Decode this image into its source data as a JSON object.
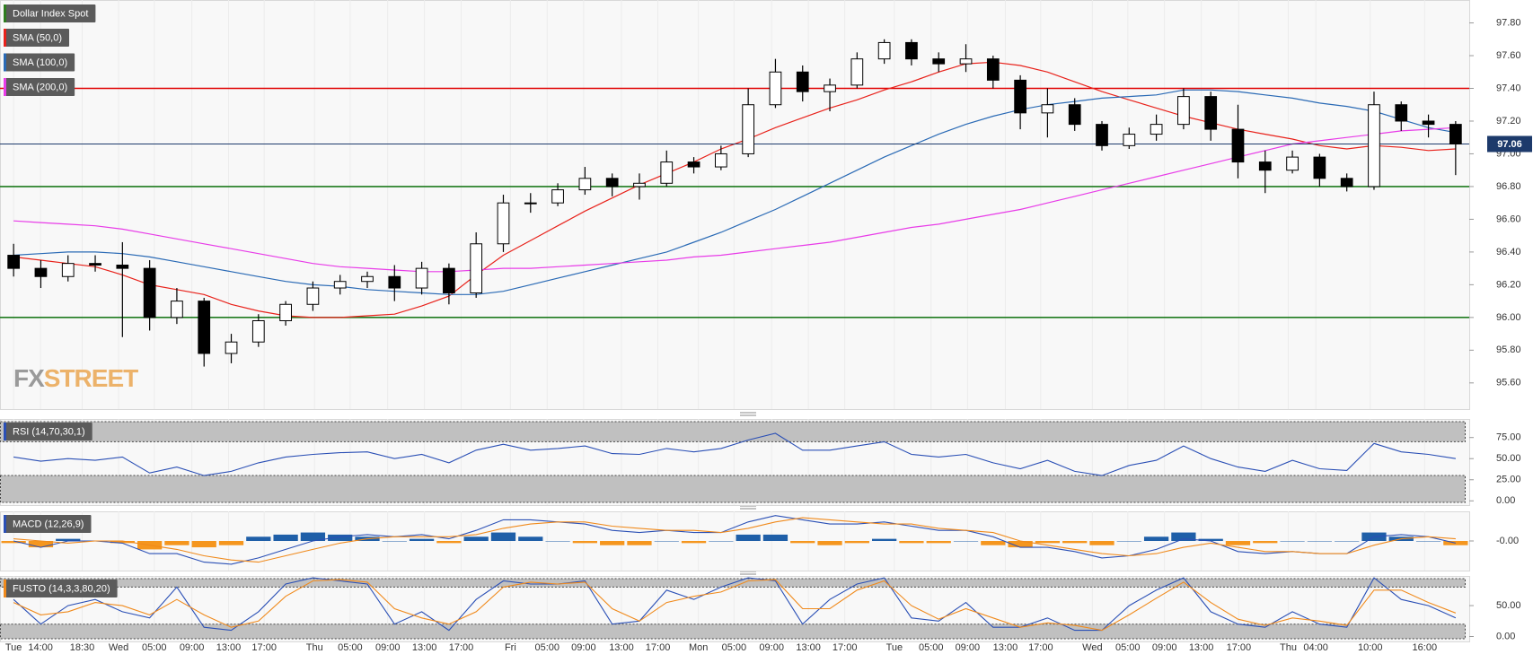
{
  "chart_data": [
    {
      "type": "candlestick",
      "name": "Dollar Index Spot",
      "color": "#2e7d1f",
      "up_color": "#ffffff",
      "down_color": "#000000",
      "open": [
        96.38,
        96.3,
        96.25,
        96.33,
        96.32,
        96.3,
        96.0,
        96.1,
        95.78,
        95.85,
        95.98,
        96.08,
        96.18,
        96.22,
        96.25,
        96.18,
        96.3,
        96.15,
        96.45,
        96.7,
        96.7,
        96.78,
        96.85,
        96.8,
        96.82,
        96.95,
        96.92,
        97.0,
        97.3,
        97.5,
        97.38,
        97.42,
        97.58,
        97.68,
        97.58,
        97.55,
        97.58,
        97.45,
        97.25,
        97.3,
        97.18,
        97.05,
        97.12,
        97.18,
        97.35,
        97.15,
        96.95,
        96.9,
        96.98,
        96.85,
        96.8,
        97.3,
        97.2,
        97.18
      ],
      "high": [
        96.45,
        96.35,
        96.38,
        96.38,
        96.46,
        96.35,
        96.18,
        96.12,
        95.9,
        96.02,
        96.1,
        96.22,
        96.26,
        96.28,
        96.32,
        96.34,
        96.33,
        96.52,
        96.75,
        96.76,
        96.82,
        96.92,
        96.88,
        96.88,
        97.02,
        96.98,
        97.05,
        97.4,
        97.58,
        97.54,
        97.46,
        97.62,
        97.7,
        97.7,
        97.62,
        97.67,
        97.6,
        97.48,
        97.4,
        97.34,
        97.2,
        97.16,
        97.24,
        97.4,
        97.38,
        97.3,
        97.02,
        97.02,
        97.0,
        96.88,
        97.38,
        97.32,
        97.24,
        97.2
      ],
      "low": [
        96.25,
        96.18,
        96.22,
        96.28,
        95.88,
        95.92,
        95.96,
        95.7,
        95.72,
        95.82,
        95.95,
        96.04,
        96.14,
        96.18,
        96.1,
        96.14,
        96.08,
        96.12,
        96.4,
        96.64,
        96.68,
        96.75,
        96.74,
        96.72,
        96.8,
        96.88,
        96.9,
        96.98,
        97.28,
        97.32,
        97.26,
        97.4,
        97.55,
        97.54,
        97.5,
        97.5,
        97.4,
        97.15,
        97.1,
        97.14,
        97.02,
        97.03,
        97.08,
        97.15,
        97.08,
        96.85,
        96.76,
        96.88,
        96.8,
        96.77,
        96.78,
        97.14,
        97.1,
        96.87
      ],
      "close": [
        96.3,
        96.25,
        96.33,
        96.32,
        96.3,
        96.0,
        96.1,
        95.78,
        95.85,
        95.98,
        96.08,
        96.18,
        96.22,
        96.25,
        96.18,
        96.3,
        96.15,
        96.45,
        96.7,
        96.7,
        96.78,
        96.85,
        96.8,
        96.82,
        96.95,
        96.92,
        97.0,
        97.3,
        97.5,
        97.38,
        97.42,
        97.58,
        97.68,
        97.58,
        97.55,
        97.58,
        97.45,
        97.25,
        97.3,
        97.18,
        97.05,
        97.12,
        97.18,
        97.35,
        97.15,
        96.95,
        96.9,
        96.98,
        96.85,
        96.8,
        97.3,
        97.2,
        97.18,
        97.06
      ],
      "series": [
        {
          "name": "SMA (50,0)",
          "color": "#e8221b",
          "values": [
            96.37,
            96.35,
            96.33,
            96.31,
            96.26,
            96.2,
            96.17,
            96.14,
            96.08,
            96.04,
            96.01,
            96.0,
            96.0,
            96.01,
            96.02,
            96.07,
            96.13,
            96.26,
            96.38,
            96.47,
            96.56,
            96.65,
            96.73,
            96.81,
            96.88,
            96.95,
            97.03,
            97.09,
            97.16,
            97.22,
            97.28,
            97.33,
            97.39,
            97.44,
            97.5,
            97.55,
            97.56,
            97.54,
            97.5,
            97.44,
            97.38,
            97.33,
            97.28,
            97.23,
            97.19,
            97.15,
            97.12,
            97.09,
            97.05,
            97.03,
            97.05,
            97.04,
            97.02,
            97.03
          ]
        },
        {
          "name": "SMA (100,0)",
          "color": "#2a6ab5",
          "values": [
            96.38,
            96.39,
            96.4,
            96.4,
            96.39,
            96.37,
            96.34,
            96.31,
            96.28,
            96.25,
            96.22,
            96.2,
            96.19,
            96.17,
            96.16,
            96.15,
            96.14,
            96.14,
            96.16,
            96.2,
            96.24,
            96.28,
            96.32,
            96.36,
            96.4,
            96.46,
            96.52,
            96.59,
            96.66,
            96.74,
            96.82,
            96.9,
            96.98,
            97.05,
            97.12,
            97.18,
            97.23,
            97.27,
            97.3,
            97.32,
            97.34,
            97.35,
            97.36,
            97.39,
            97.39,
            97.38,
            97.36,
            97.34,
            97.31,
            97.29,
            97.26,
            97.21,
            97.16,
            97.13
          ]
        },
        {
          "name": "SMA (200,0)",
          "color": "#e83ce8",
          "values": [
            96.59,
            96.58,
            96.57,
            96.56,
            96.54,
            96.51,
            96.48,
            96.45,
            96.42,
            96.39,
            96.36,
            96.33,
            96.31,
            96.3,
            96.29,
            96.28,
            96.28,
            96.29,
            96.3,
            96.3,
            96.31,
            96.32,
            96.33,
            96.34,
            96.35,
            96.37,
            96.38,
            96.4,
            96.42,
            96.44,
            96.46,
            96.49,
            96.52,
            96.55,
            96.57,
            96.6,
            96.63,
            96.66,
            96.7,
            96.74,
            96.78,
            96.82,
            96.86,
            96.9,
            96.94,
            96.98,
            97.02,
            97.06,
            97.08,
            97.1,
            97.12,
            97.14,
            97.15,
            97.16
          ]
        }
      ],
      "hlines": [
        {
          "value": 97.4,
          "color": "#e00000"
        },
        {
          "value": 96.8,
          "color": "#1e7b1e"
        },
        {
          "value": 96.0,
          "color": "#1e7b1e"
        }
      ],
      "last_price": 97.06,
      "last_price_color": "#1d3a6b",
      "watermark": [
        "FX",
        "STREET"
      ],
      "xlim": [
        -0.5,
        53.5
      ],
      "xticks": [
        {
          "value": 0,
          "label": "Tue"
        },
        {
          "value": 0.99,
          "label": "14:00"
        },
        {
          "value": 2.52,
          "label": "18:30"
        },
        {
          "value": 3.86,
          "label": "Wed"
        },
        {
          "value": 5.17,
          "label": "05:00"
        },
        {
          "value": 6.55,
          "label": "09:00"
        },
        {
          "value": 7.9,
          "label": "13:00"
        },
        {
          "value": 9.21,
          "label": "17:00"
        },
        {
          "value": 11.06,
          "label": "Thu"
        },
        {
          "value": 12.37,
          "label": "05:00"
        },
        {
          "value": 13.75,
          "label": "09:00"
        },
        {
          "value": 15.1,
          "label": "13:00"
        },
        {
          "value": 16.45,
          "label": "17:00"
        },
        {
          "value": 18.26,
          "label": "Fri"
        },
        {
          "value": 19.61,
          "label": "05:00"
        },
        {
          "value": 20.95,
          "label": "09:00"
        },
        {
          "value": 22.34,
          "label": "13:00"
        },
        {
          "value": 23.68,
          "label": "17:00"
        },
        {
          "value": 25.17,
          "label": "Mon"
        },
        {
          "value": 26.48,
          "label": "05:00"
        },
        {
          "value": 27.86,
          "label": "09:00"
        },
        {
          "value": 29.21,
          "label": "13:00"
        },
        {
          "value": 30.55,
          "label": "17:00"
        },
        {
          "value": 32.37,
          "label": "Tue"
        },
        {
          "value": 33.72,
          "label": "05:00"
        },
        {
          "value": 35.06,
          "label": "09:00"
        },
        {
          "value": 36.45,
          "label": "13:00"
        },
        {
          "value": 37.75,
          "label": "17:00"
        },
        {
          "value": 39.65,
          "label": "Wed"
        },
        {
          "value": 40.95,
          "label": "05:00"
        },
        {
          "value": 42.3,
          "label": "09:00"
        },
        {
          "value": 43.65,
          "label": "13:00"
        },
        {
          "value": 45.03,
          "label": "17:00"
        },
        {
          "value": 46.85,
          "label": "Thu"
        },
        {
          "value": 47.86,
          "label": "04:00"
        },
        {
          "value": 49.86,
          "label": "10:00"
        },
        {
          "value": 51.86,
          "label": "16:00"
        }
      ],
      "ylim": [
        95.44,
        97.94
      ],
      "yticks": [
        {
          "value": 95.6,
          "label": "95.60"
        },
        {
          "value": 95.8,
          "label": "95.80"
        },
        {
          "value": 96.0,
          "label": "96.00"
        },
        {
          "value": 96.2,
          "label": "96.20"
        },
        {
          "value": 96.4,
          "label": "96.40"
        },
        {
          "value": 96.6,
          "label": "96.60"
        },
        {
          "value": 96.8,
          "label": "96.80"
        },
        {
          "value": 97.0,
          "label": "97.00"
        },
        {
          "value": 97.2,
          "label": "97.20"
        },
        {
          "value": 97.4,
          "label": "97.40"
        },
        {
          "value": 97.6,
          "label": "97.60"
        },
        {
          "value": 97.8,
          "label": "97.80"
        }
      ]
    },
    {
      "type": "line",
      "name": "RSI (14,70,30,1)",
      "color": "#2a4fb5",
      "upper_band": 70,
      "lower_band": 30,
      "series": [
        {
          "color": "#2a4fb5",
          "values": [
            52,
            47,
            50,
            48,
            52,
            33,
            40,
            30,
            35,
            45,
            52,
            55,
            57,
            58,
            50,
            55,
            45,
            60,
            67,
            60,
            62,
            65,
            56,
            55,
            62,
            58,
            62,
            72,
            80,
            60,
            60,
            65,
            70,
            55,
            52,
            55,
            45,
            38,
            48,
            35,
            30,
            42,
            48,
            65,
            50,
            40,
            35,
            48,
            38,
            36,
            68,
            58,
            55,
            50
          ]
        }
      ],
      "ylim": [
        -5,
        97
      ],
      "yticks": [
        {
          "value": 0,
          "label": "0.00"
        },
        {
          "value": 25,
          "label": "25.00"
        },
        {
          "value": 50,
          "label": "50.00"
        },
        {
          "value": 75,
          "label": "75.00"
        }
      ]
    },
    {
      "type": "macd",
      "name": "MACD (12,26,9)",
      "color": "#2a4fb5",
      "series": [
        {
          "color": "#2a4fb5",
          "values": [
            0.0,
            -0.03,
            0.0,
            0.0,
            -0.01,
            -0.06,
            -0.06,
            -0.1,
            -0.11,
            -0.08,
            -0.04,
            0.0,
            0.02,
            0.03,
            0.02,
            0.03,
            0.01,
            0.05,
            0.1,
            0.1,
            0.09,
            0.08,
            0.05,
            0.04,
            0.05,
            0.04,
            0.04,
            0.09,
            0.12,
            0.1,
            0.08,
            0.08,
            0.09,
            0.07,
            0.05,
            0.05,
            0.02,
            -0.03,
            -0.03,
            -0.05,
            -0.08,
            -0.07,
            -0.04,
            0.01,
            0.0,
            -0.05,
            -0.06,
            -0.05,
            -0.06,
            -0.06,
            0.02,
            0.03,
            0.02,
            -0.01
          ]
        },
        {
          "color": "#f08a1c",
          "values": [
            0.01,
            0.0,
            -0.01,
            0.0,
            0.0,
            -0.02,
            -0.04,
            -0.07,
            -0.09,
            -0.1,
            -0.07,
            -0.04,
            -0.01,
            0.01,
            0.02,
            0.02,
            0.02,
            0.03,
            0.06,
            0.08,
            0.09,
            0.09,
            0.07,
            0.06,
            0.05,
            0.05,
            0.04,
            0.06,
            0.09,
            0.11,
            0.1,
            0.09,
            0.08,
            0.08,
            0.06,
            0.05,
            0.04,
            0.0,
            -0.02,
            -0.04,
            -0.06,
            -0.07,
            -0.06,
            -0.03,
            -0.01,
            -0.03,
            -0.05,
            -0.05,
            -0.06,
            -0.06,
            -0.02,
            0.01,
            0.02,
            0.01
          ]
        }
      ],
      "histogram": {
        "up_color": "#1f5fa8",
        "down_color": "#f5961e",
        "values": [
          -0.01,
          -0.03,
          0.01,
          0.0,
          -0.01,
          -0.04,
          -0.02,
          -0.03,
          -0.02,
          0.02,
          0.03,
          0.04,
          0.03,
          0.02,
          0.0,
          0.01,
          -0.01,
          0.02,
          0.04,
          0.02,
          0.0,
          -0.01,
          -0.02,
          -0.02,
          0.0,
          -0.01,
          0.0,
          0.03,
          0.03,
          -0.01,
          -0.02,
          -0.01,
          0.01,
          -0.01,
          -0.01,
          0.0,
          -0.02,
          -0.03,
          -0.01,
          -0.01,
          -0.02,
          0.0,
          0.02,
          0.04,
          0.01,
          -0.02,
          -0.01,
          0.0,
          0.0,
          0.0,
          0.04,
          0.02,
          0.0,
          -0.02
        ]
      },
      "ylim": [
        -0.14,
        0.14
      ],
      "yticks": [
        {
          "value": 0,
          "label": "-0.00"
        }
      ]
    },
    {
      "type": "line",
      "name": "FUSTO (14,3,3,80,20)",
      "color": "#f08a1c",
      "upper_band": 80,
      "lower_band": 20,
      "series": [
        {
          "color": "#2a4fb5",
          "values": [
            60,
            20,
            50,
            60,
            40,
            30,
            80,
            15,
            10,
            40,
            85,
            95,
            90,
            85,
            20,
            40,
            10,
            60,
            90,
            85,
            85,
            90,
            20,
            25,
            75,
            60,
            80,
            95,
            90,
            20,
            60,
            85,
            95,
            30,
            25,
            55,
            15,
            15,
            30,
            10,
            10,
            50,
            75,
            95,
            40,
            20,
            15,
            40,
            20,
            15,
            95,
            60,
            50,
            30
          ]
        },
        {
          "color": "#f08a1c",
          "values": [
            55,
            35,
            40,
            55,
            50,
            35,
            60,
            35,
            15,
            25,
            65,
            90,
            92,
            88,
            45,
            30,
            20,
            40,
            80,
            88,
            85,
            88,
            45,
            25,
            55,
            65,
            72,
            90,
            92,
            45,
            45,
            75,
            90,
            50,
            28,
            45,
            30,
            15,
            22,
            18,
            10,
            35,
            62,
            88,
            55,
            28,
            18,
            30,
            25,
            18,
            75,
            75,
            55,
            38
          ]
        }
      ],
      "ylim": [
        -8,
        98
      ],
      "yticks": [
        {
          "value": 0,
          "label": "0.00"
        },
        {
          "value": 50,
          "label": "50.00"
        }
      ]
    }
  ]
}
